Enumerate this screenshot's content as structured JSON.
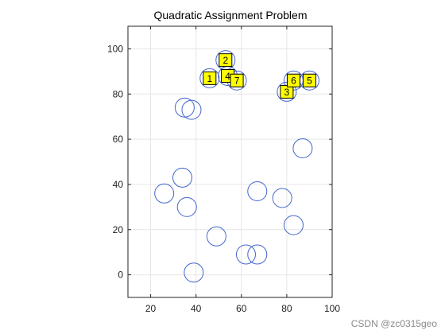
{
  "chart_data": {
    "type": "scatter",
    "title": "Quadratic Assignment Problem",
    "xlabel": "",
    "ylabel": "",
    "xlim": [
      10,
      100
    ],
    "ylim": [
      -10,
      110
    ],
    "xticks": [
      20,
      40,
      60,
      80,
      100
    ],
    "yticks": [
      0,
      20,
      40,
      60,
      80,
      100
    ],
    "grid": true,
    "colors": {
      "circle": "#4466cc",
      "facility_fill": "#ffff00",
      "facility_edge": "#000000"
    },
    "series": [
      {
        "marker": "circle",
        "points": [
          {
            "x": 46,
            "y": 87
          },
          {
            "x": 53,
            "y": 95
          },
          {
            "x": 54,
            "y": 88
          },
          {
            "x": 58,
            "y": 86
          },
          {
            "x": 80,
            "y": 81
          },
          {
            "x": 83,
            "y": 86
          },
          {
            "x": 90,
            "y": 86
          },
          {
            "x": 35,
            "y": 74
          },
          {
            "x": 38,
            "y": 73
          },
          {
            "x": 87,
            "y": 56
          },
          {
            "x": 34,
            "y": 43
          },
          {
            "x": 26,
            "y": 36
          },
          {
            "x": 36,
            "y": 30
          },
          {
            "x": 67,
            "y": 37
          },
          {
            "x": 78,
            "y": 34
          },
          {
            "x": 83,
            "y": 22
          },
          {
            "x": 49,
            "y": 17
          },
          {
            "x": 62,
            "y": 9
          },
          {
            "x": 67,
            "y": 9
          },
          {
            "x": 39,
            "y": 1
          }
        ]
      },
      {
        "marker": "labeled-square",
        "points": [
          {
            "label": "1",
            "x": 46,
            "y": 87
          },
          {
            "label": "2",
            "x": 53,
            "y": 95
          },
          {
            "label": "3",
            "x": 80,
            "y": 81
          },
          {
            "label": "4",
            "x": 54,
            "y": 88
          },
          {
            "label": "5",
            "x": 90,
            "y": 86
          },
          {
            "label": "6",
            "x": 83,
            "y": 86
          },
          {
            "label": "7",
            "x": 58,
            "y": 86
          }
        ]
      }
    ]
  },
  "watermark": "CSDN @zc0315geo"
}
